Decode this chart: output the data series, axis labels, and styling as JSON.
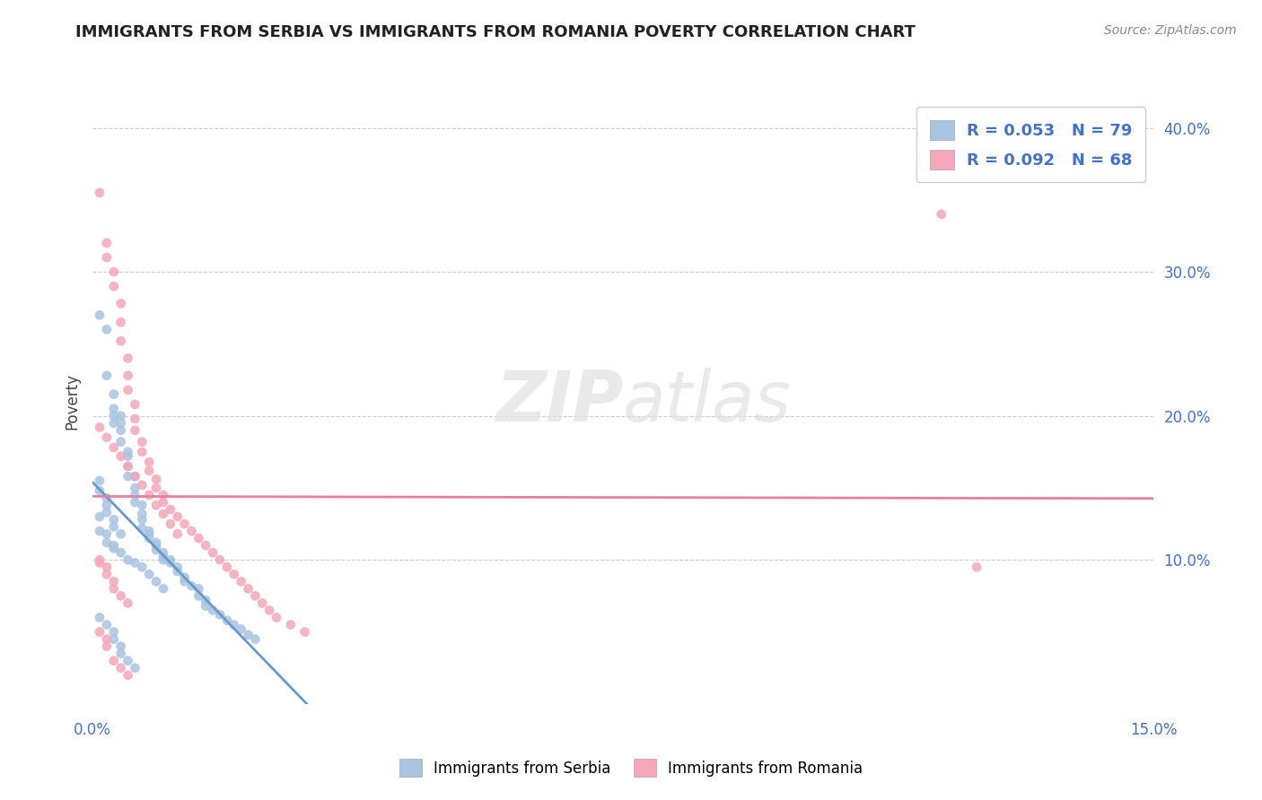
{
  "title": "IMMIGRANTS FROM SERBIA VS IMMIGRANTS FROM ROMANIA POVERTY CORRELATION CHART",
  "source": "Source: ZipAtlas.com",
  "ylabel": "Poverty",
  "xlim": [
    0.0,
    0.15
  ],
  "ylim": [
    0.0,
    0.42
  ],
  "y_ticks_right": [
    0.1,
    0.2,
    0.3,
    0.4
  ],
  "y_tick_labels_right": [
    "10.0%",
    "20.0%",
    "30.0%",
    "40.0%"
  ],
  "serbia_color": "#a8c4e0",
  "romania_color": "#f4a7b9",
  "serbia_line_color": "#6699cc",
  "romania_line_color": "#e87fa0",
  "serbia_R": 0.053,
  "serbia_N": 79,
  "romania_R": 0.092,
  "romania_N": 68,
  "legend_label_serbia": "Immigrants from Serbia",
  "legend_label_romania": "Immigrants from Romania",
  "watermark_zip": "ZIP",
  "watermark_atlas": "atlas",
  "title_color": "#222222",
  "axis_color": "#4472c4",
  "legend_text_color": "#4472c4",
  "serbia_scatter_x": [
    0.001,
    0.002,
    0.002,
    0.003,
    0.003,
    0.003,
    0.003,
    0.004,
    0.004,
    0.004,
    0.004,
    0.005,
    0.005,
    0.005,
    0.005,
    0.006,
    0.006,
    0.006,
    0.006,
    0.007,
    0.007,
    0.007,
    0.007,
    0.008,
    0.008,
    0.008,
    0.009,
    0.009,
    0.009,
    0.01,
    0.01,
    0.01,
    0.011,
    0.011,
    0.012,
    0.012,
    0.013,
    0.013,
    0.014,
    0.015,
    0.015,
    0.016,
    0.016,
    0.017,
    0.018,
    0.019,
    0.02,
    0.021,
    0.022,
    0.023,
    0.001,
    0.001,
    0.002,
    0.002,
    0.003,
    0.003,
    0.004,
    0.005,
    0.006,
    0.007,
    0.008,
    0.009,
    0.01,
    0.001,
    0.002,
    0.003,
    0.003,
    0.004,
    0.004,
    0.005,
    0.006,
    0.001,
    0.001,
    0.002,
    0.002,
    0.002,
    0.003,
    0.003,
    0.004
  ],
  "serbia_scatter_y": [
    0.27,
    0.26,
    0.228,
    0.215,
    0.205,
    0.2,
    0.195,
    0.2,
    0.195,
    0.19,
    0.182,
    0.175,
    0.172,
    0.165,
    0.158,
    0.158,
    0.15,
    0.145,
    0.14,
    0.138,
    0.132,
    0.128,
    0.122,
    0.12,
    0.118,
    0.115,
    0.112,
    0.11,
    0.107,
    0.105,
    0.102,
    0.1,
    0.1,
    0.098,
    0.095,
    0.092,
    0.088,
    0.085,
    0.082,
    0.08,
    0.075,
    0.072,
    0.068,
    0.065,
    0.062,
    0.058,
    0.055,
    0.052,
    0.048,
    0.045,
    0.13,
    0.12,
    0.118,
    0.112,
    0.11,
    0.108,
    0.105,
    0.1,
    0.098,
    0.095,
    0.09,
    0.085,
    0.08,
    0.06,
    0.055,
    0.05,
    0.045,
    0.04,
    0.035,
    0.03,
    0.025,
    0.155,
    0.148,
    0.143,
    0.138,
    0.133,
    0.128,
    0.123,
    0.118
  ],
  "romania_scatter_x": [
    0.001,
    0.002,
    0.002,
    0.003,
    0.003,
    0.004,
    0.004,
    0.004,
    0.005,
    0.005,
    0.005,
    0.006,
    0.006,
    0.006,
    0.007,
    0.007,
    0.008,
    0.008,
    0.009,
    0.009,
    0.01,
    0.01,
    0.011,
    0.012,
    0.013,
    0.014,
    0.015,
    0.016,
    0.017,
    0.018,
    0.019,
    0.02,
    0.021,
    0.022,
    0.023,
    0.024,
    0.025,
    0.026,
    0.028,
    0.03,
    0.001,
    0.002,
    0.003,
    0.004,
    0.005,
    0.006,
    0.007,
    0.008,
    0.009,
    0.01,
    0.011,
    0.012,
    0.001,
    0.001,
    0.002,
    0.002,
    0.003,
    0.003,
    0.004,
    0.005,
    0.12,
    0.125,
    0.001,
    0.002,
    0.002,
    0.003,
    0.004,
    0.005
  ],
  "romania_scatter_y": [
    0.355,
    0.32,
    0.31,
    0.3,
    0.29,
    0.278,
    0.265,
    0.252,
    0.24,
    0.228,
    0.218,
    0.208,
    0.198,
    0.19,
    0.182,
    0.175,
    0.168,
    0.162,
    0.156,
    0.15,
    0.145,
    0.14,
    0.135,
    0.13,
    0.125,
    0.12,
    0.115,
    0.11,
    0.105,
    0.1,
    0.095,
    0.09,
    0.085,
    0.08,
    0.075,
    0.07,
    0.065,
    0.06,
    0.055,
    0.05,
    0.192,
    0.185,
    0.178,
    0.172,
    0.165,
    0.158,
    0.152,
    0.145,
    0.138,
    0.132,
    0.125,
    0.118,
    0.1,
    0.098,
    0.095,
    0.09,
    0.085,
    0.08,
    0.075,
    0.07,
    0.34,
    0.095,
    0.05,
    0.045,
    0.04,
    0.03,
    0.025,
    0.02
  ]
}
